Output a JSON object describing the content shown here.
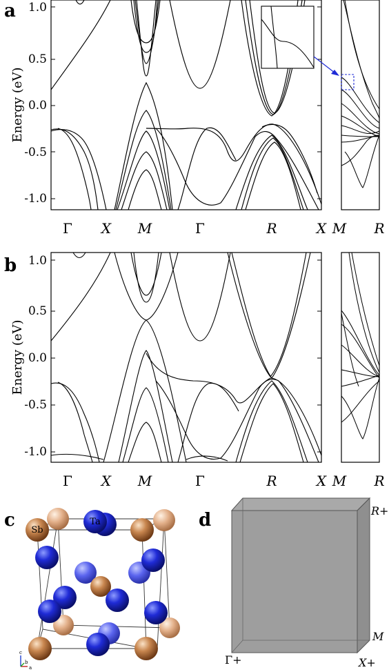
{
  "panels": [
    {
      "letter": "a",
      "ylabel": "Energy (eV)",
      "yticks": [
        "1.0",
        "0.5",
        "0.0",
        "-0.5",
        "-1.0"
      ],
      "kpoints_main": [
        "Γ",
        "X",
        "M",
        "Γ",
        "R",
        "X"
      ],
      "kpoints_side": [
        "M",
        "R"
      ],
      "has_inset": true
    },
    {
      "letter": "b",
      "ylabel": "Energy (eV)",
      "yticks": [
        "1.0",
        "0.5",
        "0.0",
        "-0.5",
        "-1.0"
      ],
      "kpoints_main": [
        "Γ",
        "X",
        "M",
        "Γ",
        "R",
        "X"
      ],
      "kpoints_side": [
        "M",
        "R"
      ],
      "has_inset": false
    }
  ],
  "chart_data": [
    {
      "type": "line",
      "panel": "a",
      "title": "",
      "xlabel": "",
      "ylabel": "Energy (eV)",
      "ylim": [
        -1.07,
        1.12
      ],
      "x_ticks": [
        "Γ",
        "X",
        "M",
        "Γ",
        "R",
        "X",
        "M",
        "R"
      ],
      "grid": false,
      "series": [
        {
          "path": "Γ-X-M-Γ-R-X",
          "values": [
            [
              0.0,
              0.17
            ],
            [
              0.4,
              0.6
            ],
            [
              0.8,
              1.05
            ],
            [
              1.4,
              0.8
            ],
            [
              2.0,
              0.3
            ],
            [
              2.5,
              0.95
            ]
          ]
        },
        {
          "path": "Γ-X-M-Γ-R-X",
          "values": [
            [
              0.0,
              -0.27
            ],
            [
              0.3,
              -0.3
            ],
            [
              0.8,
              -0.75
            ],
            [
              1.0,
              -1.05
            ]
          ]
        },
        {
          "path": "Γ-X-M-Γ-R-X",
          "values": [
            [
              2.0,
              -0.27
            ],
            [
              2.6,
              -0.35
            ],
            [
              3.2,
              -0.55
            ],
            [
              3.5,
              -0.3
            ],
            [
              4.0,
              -0.32
            ],
            [
              4.4,
              -0.9
            ],
            [
              4.6,
              -1.05
            ]
          ]
        },
        {
          "path": "Γ-X-M-Γ-R-X",
          "values": [
            [
              2.0,
              0.22
            ],
            [
              2.4,
              -0.3
            ],
            [
              2.8,
              -0.8
            ],
            [
              3.0,
              -1.05
            ]
          ]
        },
        {
          "path": "Γ-X-M-Γ-R-X",
          "values": [
            [
              4.0,
              -0.1
            ],
            [
              3.7,
              0.3
            ],
            [
              3.4,
              0.8
            ],
            [
              3.3,
              1.1
            ]
          ]
        }
      ]
    },
    {
      "type": "line",
      "panel": "b",
      "title": "",
      "xlabel": "",
      "ylabel": "Energy (eV)",
      "ylim": [
        -1.07,
        1.12
      ],
      "x_ticks": [
        "Γ",
        "X",
        "M",
        "Γ",
        "R",
        "X",
        "M",
        "R"
      ],
      "grid": false,
      "series": [
        {
          "path": "Γ-X-M-Γ-R-X",
          "values": [
            [
              0.0,
              0.17
            ],
            [
              0.4,
              0.65
            ],
            [
              0.8,
              1.05
            ]
          ]
        },
        {
          "path": "Γ-X-M-Γ-R-X",
          "values": [
            [
              0.0,
              -0.27
            ],
            [
              0.5,
              -0.4
            ],
            [
              0.9,
              -0.8
            ],
            [
              1.1,
              -1.05
            ]
          ]
        },
        {
          "path": "Γ-X-M-Γ-R-X",
          "values": [
            [
              2.0,
              0.4
            ],
            [
              2.3,
              0.0
            ],
            [
              2.6,
              -0.5
            ],
            [
              2.9,
              -1.05
            ]
          ]
        },
        {
          "path": "Γ-X-M-Γ-R-X",
          "values": [
            [
              2.0,
              0.05
            ],
            [
              2.4,
              -0.2
            ],
            [
              2.8,
              -0.25
            ],
            [
              3.4,
              -0.27
            ],
            [
              4.0,
              -0.2
            ],
            [
              4.5,
              -0.6
            ],
            [
              4.8,
              -1.05
            ]
          ]
        },
        {
          "path": "Γ-X-M-Γ-R-X",
          "values": [
            [
              4.0,
              -0.2
            ],
            [
              3.7,
              0.3
            ],
            [
              3.4,
              0.8
            ],
            [
              3.3,
              1.1
            ]
          ]
        }
      ]
    }
  ],
  "panel_c": {
    "letter": "c",
    "atom_labels": [
      "Sb",
      "Ta"
    ],
    "axes_labels": [
      "c",
      "b",
      "a"
    ],
    "colors": {
      "sb": "#c8864f",
      "sb_light": "#e7b792",
      "ta": "#1a1fc8",
      "ta_light": "#6c74ff"
    }
  },
  "panel_d": {
    "letter": "d",
    "labels": [
      "R+",
      "M",
      "Γ+",
      "X+"
    ],
    "box_color": "#9e9e9e"
  },
  "line_color": "#000000",
  "accent_color": "#1f2bd6"
}
